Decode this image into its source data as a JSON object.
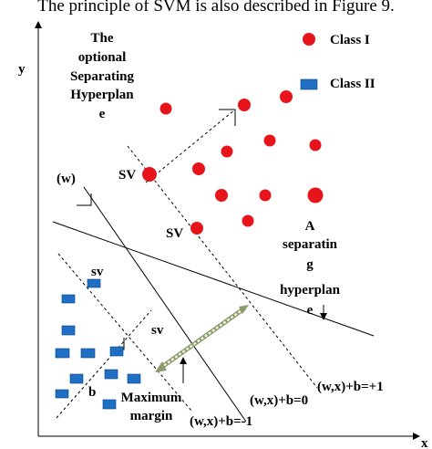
{
  "caption": "The principle of SVM is also described in Figure 9.",
  "axes": {
    "y": "y",
    "x": "x"
  },
  "legend": {
    "class1": "Class I",
    "class2": "Class II"
  },
  "optional_hyperplane": [
    "The",
    "optional",
    "Separating",
    "Hyperplan",
    "e"
  ],
  "separating_hyperplane": [
    "A",
    "separatin",
    "g",
    "hyperplan",
    "e"
  ],
  "labels": {
    "sv_upper_1": "SV",
    "sv_upper_2": "SV",
    "w": "(w)",
    "sv_lower_1": "sv",
    "sv_lower_2": "sv",
    "b": "b",
    "margin": [
      "Maximum",
      "margin"
    ],
    "plus1": "(w,x)+b=+1",
    "zero": "(w,x)+b=0",
    "minus1": "(w,x)+b=-1"
  }
}
